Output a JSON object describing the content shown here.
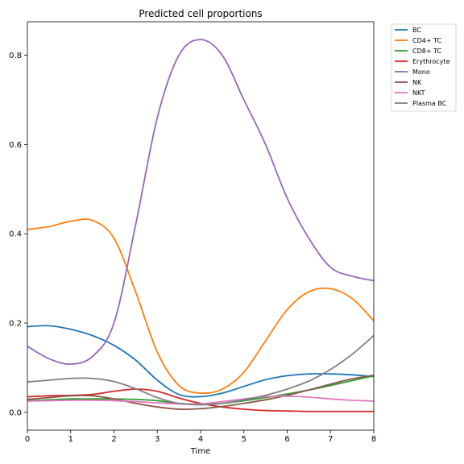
{
  "chart_data": {
    "type": "line",
    "title": "Predicted cell proportions",
    "xlabel": "Time",
    "ylabel": "",
    "xlim": [
      0,
      8
    ],
    "ylim": [
      -0.04,
      0.875
    ],
    "xticks": [
      0,
      1,
      2,
      3,
      4,
      5,
      6,
      7,
      8
    ],
    "yticks": [
      0.0,
      0.2,
      0.4,
      0.6,
      0.8
    ],
    "ytick_labels": [
      "0.0",
      "0.2",
      "0.4",
      "0.6",
      "0.8"
    ],
    "grid": false,
    "legend_placement": "outside-top-right",
    "x": [
      0,
      0.5,
      1,
      1.5,
      2,
      2.5,
      3,
      3.5,
      4,
      4.5,
      5,
      5.5,
      6,
      6.5,
      7,
      7.5,
      8
    ],
    "series": [
      {
        "name": "BC",
        "color": "#1f77b4",
        "values": [
          0.192,
          0.194,
          0.186,
          0.172,
          0.15,
          0.117,
          0.072,
          0.04,
          0.035,
          0.043,
          0.058,
          0.073,
          0.082,
          0.086,
          0.086,
          0.084,
          0.08
        ]
      },
      {
        "name": "CD4+ TC",
        "color": "#ff7f0e",
        "values": [
          0.41,
          0.416,
          0.428,
          0.43,
          0.39,
          0.27,
          0.135,
          0.06,
          0.043,
          0.052,
          0.09,
          0.16,
          0.23,
          0.27,
          0.277,
          0.255,
          0.205
        ]
      },
      {
        "name": "CD8+ TC",
        "color": "#2ca02c",
        "values": [
          0.026,
          0.028,
          0.03,
          0.03,
          0.03,
          0.029,
          0.026,
          0.02,
          0.018,
          0.02,
          0.026,
          0.033,
          0.041,
          0.05,
          0.06,
          0.071,
          0.082
        ]
      },
      {
        "name": "Erythrocyte",
        "color": "#d62728",
        "values": [
          0.035,
          0.037,
          0.038,
          0.04,
          0.047,
          0.052,
          0.047,
          0.032,
          0.02,
          0.012,
          0.007,
          0.004,
          0.003,
          0.002,
          0.002,
          0.002,
          0.002
        ]
      },
      {
        "name": "Mono",
        "color": "#9467bd",
        "values": [
          0.148,
          0.12,
          0.108,
          0.125,
          0.2,
          0.42,
          0.66,
          0.8,
          0.835,
          0.8,
          0.7,
          0.6,
          0.48,
          0.39,
          0.325,
          0.305,
          0.295
        ]
      },
      {
        "name": "NK",
        "color": "#8c564b",
        "values": [
          0.029,
          0.033,
          0.037,
          0.037,
          0.03,
          0.02,
          0.012,
          0.007,
          0.008,
          0.013,
          0.02,
          0.028,
          0.038,
          0.05,
          0.063,
          0.075,
          0.083
        ]
      },
      {
        "name": "NKT",
        "color": "#e377c2",
        "values": [
          0.025,
          0.026,
          0.027,
          0.027,
          0.026,
          0.024,
          0.021,
          0.019,
          0.019,
          0.024,
          0.03,
          0.035,
          0.036,
          0.034,
          0.03,
          0.027,
          0.025
        ]
      },
      {
        "name": "Plasma BC",
        "color": "#7f7f7f",
        "values": [
          0.068,
          0.072,
          0.076,
          0.076,
          0.069,
          0.053,
          0.033,
          0.02,
          0.017,
          0.02,
          0.028,
          0.038,
          0.052,
          0.07,
          0.096,
          0.13,
          0.172
        ]
      }
    ]
  }
}
